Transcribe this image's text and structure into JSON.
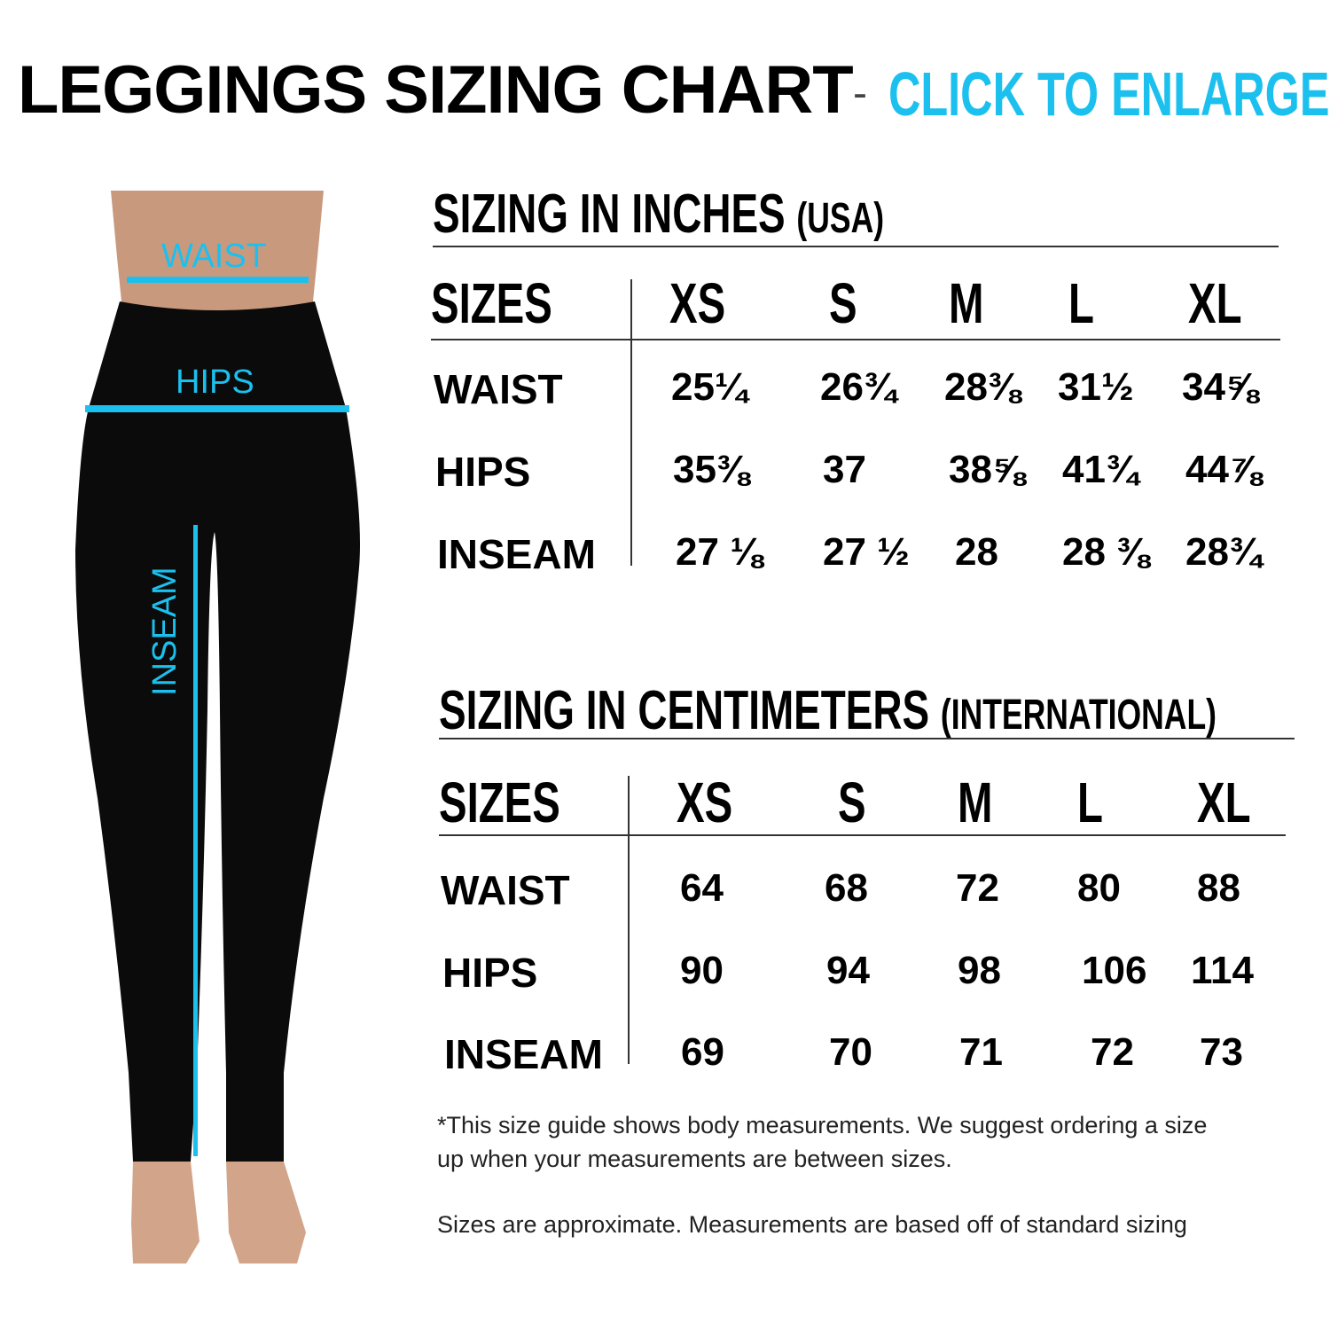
{
  "header": {
    "title": "LEGGINGS SIZING CHART",
    "separator": "-",
    "link": "CLICK TO ENLARGE"
  },
  "figure": {
    "labels": {
      "waist": "WAIST",
      "hips": "HIPS",
      "inseam": "INSEAM"
    },
    "accent_color": "#1cc0ee"
  },
  "inches": {
    "title": "SIZING IN INCHES",
    "subtitle": "(USA)",
    "sizes_label": "SIZES",
    "sizes": [
      "XS",
      "S",
      "M",
      "L",
      "XL"
    ],
    "rows": [
      {
        "label": "WAIST",
        "values": [
          "25¼",
          "26¾",
          "28⅜",
          "31½",
          "34⅝"
        ]
      },
      {
        "label": "HIPS",
        "values": [
          "35⅜",
          "37",
          "38⅝",
          "41¾",
          "44⅞"
        ]
      },
      {
        "label": "INSEAM",
        "values": [
          "27 ⅛",
          "27 ½",
          "28",
          "28 ⅜",
          "28¾"
        ]
      }
    ]
  },
  "cm": {
    "title": "SIZING IN CENTIMETERS",
    "subtitle": "(INTERNATIONAL)",
    "sizes_label": "SIZES",
    "sizes": [
      "XS",
      "S",
      "M",
      "L",
      "XL"
    ],
    "rows": [
      {
        "label": "WAIST",
        "values": [
          "64",
          "68",
          "72",
          "80",
          "88"
        ]
      },
      {
        "label": "HIPS",
        "values": [
          "90",
          "94",
          "98",
          "106",
          "114"
        ]
      },
      {
        "label": "INSEAM",
        "values": [
          "69",
          "70",
          "71",
          "72",
          "73"
        ]
      }
    ]
  },
  "notes": {
    "line1": "*This size guide shows body measurements. We suggest ordering a size",
    "line2": "up when your measurements are between sizes.",
    "line3": "Sizes are approximate. Measurements are based off of standard sizing"
  }
}
